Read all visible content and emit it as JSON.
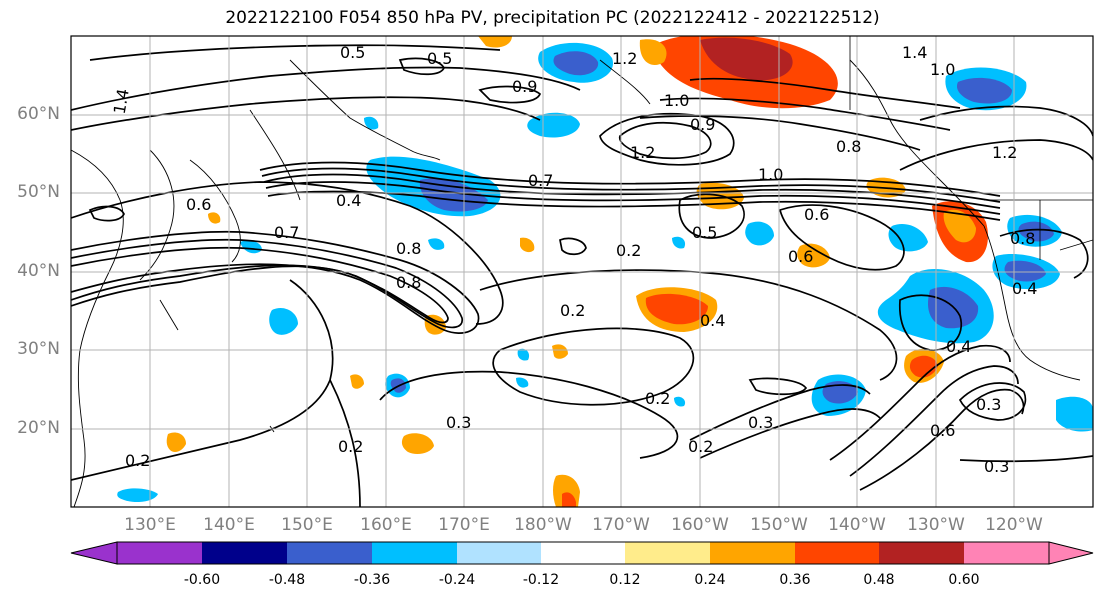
{
  "title": "2022122100 F054 850 hPa PV, precipitation PC (2022122412 - 2022122512)",
  "lat_labels": [
    "60°N",
    "50°N",
    "40°N",
    "30°N",
    "20°N"
  ],
  "lon_labels": [
    "130°E",
    "140°E",
    "150°E",
    "160°E",
    "170°E",
    "180°W",
    "170°W",
    "160°W",
    "150°W",
    "140°W",
    "130°W",
    "120°W"
  ],
  "colorbar": {
    "colors": [
      "#9a32cd",
      "#00008b",
      "#3a5fcd",
      "#00bfff",
      "#b0e2ff",
      "#ffffff",
      "#ffec8b",
      "#ffa500",
      "#ff4500",
      "#b22222",
      "#ff83b5"
    ],
    "tick_labels": [
      "-0.60",
      "-0.48",
      "-0.36",
      "-0.24",
      "-0.12",
      "0.12",
      "0.24",
      "0.36",
      "0.48",
      "0.60"
    ]
  },
  "contour_labels": [
    "0.5",
    "0.5",
    "0.9",
    "1.2",
    "1.4",
    "1.4",
    "1.0",
    "1.0",
    "1.0",
    "1.2",
    "0.7",
    "0.8",
    "0.6",
    "0.4",
    "0.7",
    "0.8",
    "0.8",
    "0.2",
    "0.5",
    "0.6",
    "0.4",
    "0.2",
    "0.2",
    "0.3",
    "0.2",
    "0.2",
    "0.3",
    "0.2",
    "0.6",
    "0.3",
    "0.4",
    "0.3",
    "0.8",
    "0.4",
    "1.2",
    "0.6",
    "0.9"
  ]
}
